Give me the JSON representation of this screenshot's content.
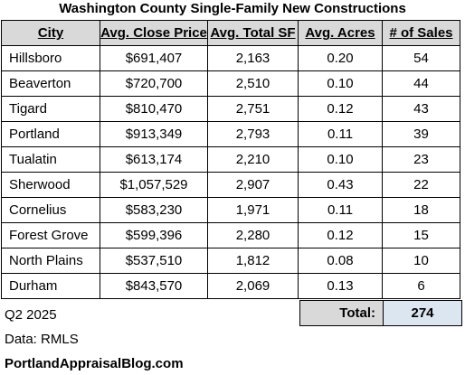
{
  "title": "Washington County Single-Family New Constructions",
  "columns": [
    "City",
    "Avg. Close Price",
    "Avg. Total SF",
    "Avg. Acres",
    "# of Sales"
  ],
  "rows": [
    {
      "city": "Hillsboro",
      "price": "$691,407",
      "sf": "2,163",
      "acres": "0.20",
      "sales": "54"
    },
    {
      "city": "Beaverton",
      "price": "$720,700",
      "sf": "2,510",
      "acres": "0.10",
      "sales": "44"
    },
    {
      "city": "Tigard",
      "price": "$810,470",
      "sf": "2,751",
      "acres": "0.12",
      "sales": "43"
    },
    {
      "city": "Portland",
      "price": "$913,349",
      "sf": "2,793",
      "acres": "0.11",
      "sales": "39"
    },
    {
      "city": "Tualatin",
      "price": "$613,174",
      "sf": "2,210",
      "acres": "0.10",
      "sales": "23"
    },
    {
      "city": "Sherwood",
      "price": "$1,057,529",
      "sf": "2,907",
      "acres": "0.43",
      "sales": "22"
    },
    {
      "city": "Cornelius",
      "price": "$583,230",
      "sf": "1,971",
      "acres": "0.11",
      "sales": "18"
    },
    {
      "city": "Forest Grove",
      "price": "$599,396",
      "sf": "2,280",
      "acres": "0.12",
      "sales": "15"
    },
    {
      "city": "North Plains",
      "price": "$537,510",
      "sf": "1,812",
      "acres": "0.08",
      "sales": "10"
    },
    {
      "city": "Durham",
      "price": "$843,570",
      "sf": "2,069",
      "acres": "0.13",
      "sales": "6"
    }
  ],
  "total": {
    "label": "Total:",
    "value": "274"
  },
  "notes": {
    "quarter": "Q2 2025",
    "source": "Data: RMLS",
    "site": "PortlandAppraisalBlog.com"
  },
  "colors": {
    "header_bg": "#d9d9d9",
    "total_value_bg": "#dce6f1"
  }
}
